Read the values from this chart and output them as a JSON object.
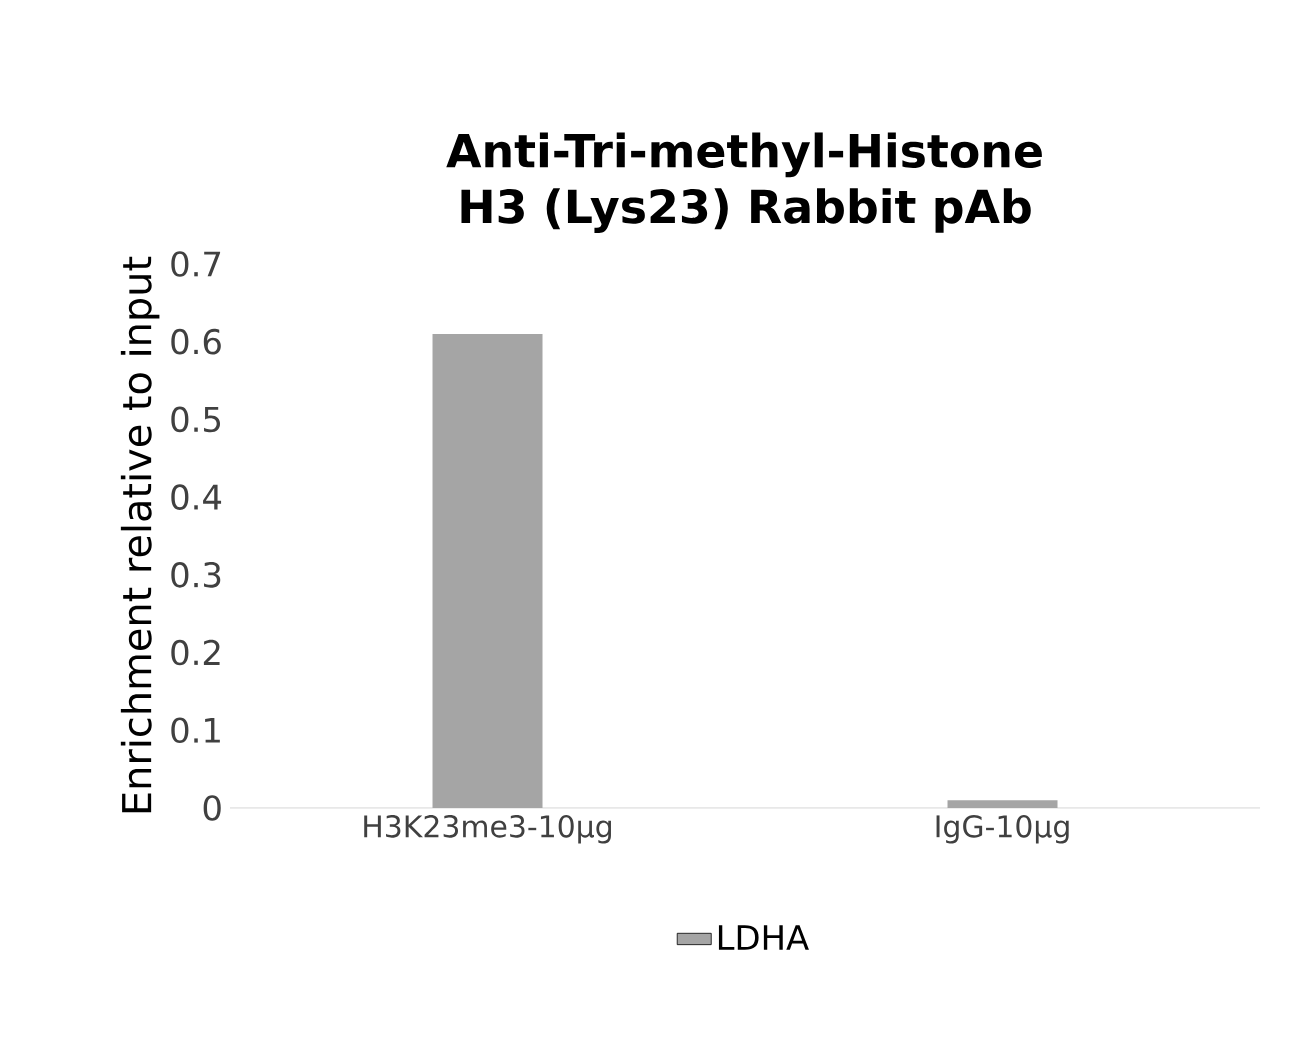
{
  "chart_data": {
    "type": "bar",
    "title": "Anti-Tri-methyl-Histone H3 (Lys23) Rabbit pAb",
    "ylabel": "Enrichment relative to input",
    "categories": [
      "H3K23me3-10µg",
      "IgG-10µg"
    ],
    "series": [
      {
        "name": "LDHA",
        "color": "#a5a5a5",
        "values": [
          0.61,
          0.01
        ]
      }
    ],
    "ylim": [
      0,
      0.7
    ],
    "yticks": [
      0,
      0.1,
      0.2,
      0.3,
      0.4,
      0.5,
      0.6,
      0.7
    ],
    "grid": false,
    "legend": "bottom"
  }
}
